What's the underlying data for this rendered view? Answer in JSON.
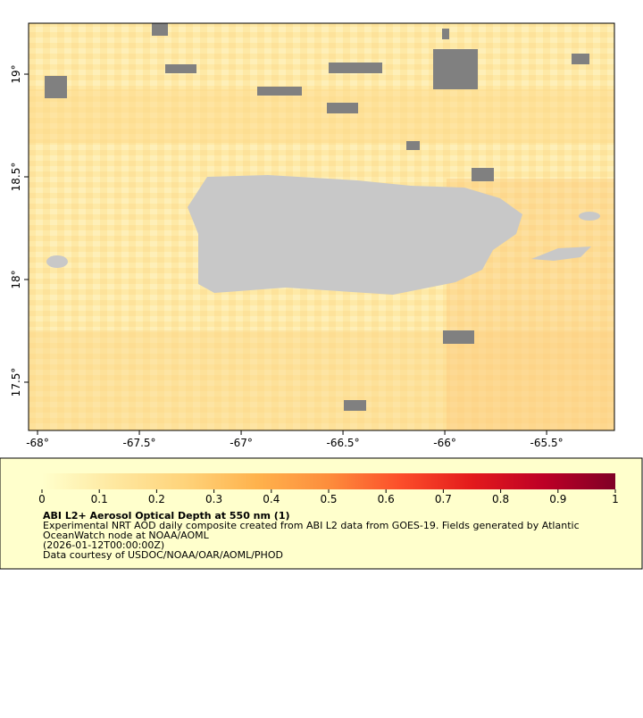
{
  "map": {
    "xlim": [
      -68.044,
      -65.167
    ],
    "ylim": [
      17.265,
      19.248
    ],
    "xticks": [
      {
        "value": -68,
        "label": "-68°"
      },
      {
        "value": -67.5,
        "label": "-67.5°"
      },
      {
        "value": -67,
        "label": "-67°"
      },
      {
        "value": -66.5,
        "label": "-66.5°"
      },
      {
        "value": -66,
        "label": "-66°"
      },
      {
        "value": -65.5,
        "label": "-65.5°"
      }
    ],
    "yticks": [
      {
        "value": 17.5,
        "label": "17.5°"
      },
      {
        "value": 18,
        "label": "18°"
      },
      {
        "value": 18.5,
        "label": "18.5°"
      },
      {
        "value": 19,
        "label": "19°"
      }
    ]
  },
  "colorbar": {
    "lim": [
      0,
      1
    ],
    "ticks": [
      0,
      0.1,
      0.2,
      0.3,
      0.4,
      0.5,
      0.6,
      0.7,
      0.8,
      0.9,
      1
    ],
    "colors": [
      "#ffffcc",
      "#fee8a0",
      "#fed37a",
      "#feb24c",
      "#fd8d3c",
      "#fc4e2a",
      "#e31a1c",
      "#bd0026",
      "#800026"
    ]
  },
  "legend": {
    "title": "ABI L2+ Aerosol Optical Depth at 550 nm (1)",
    "lines": [
      "Experimental NRT AOD daily composite created from ABI L2 data from GOES-19. Fields generated by Atlantic",
      "OceanWatch node at NOAA/AOML",
      "(2026-01-12T00:00:00Z)",
      "Data courtesy of USDOC/NOAA/OAR/AOML/PHOD"
    ]
  }
}
